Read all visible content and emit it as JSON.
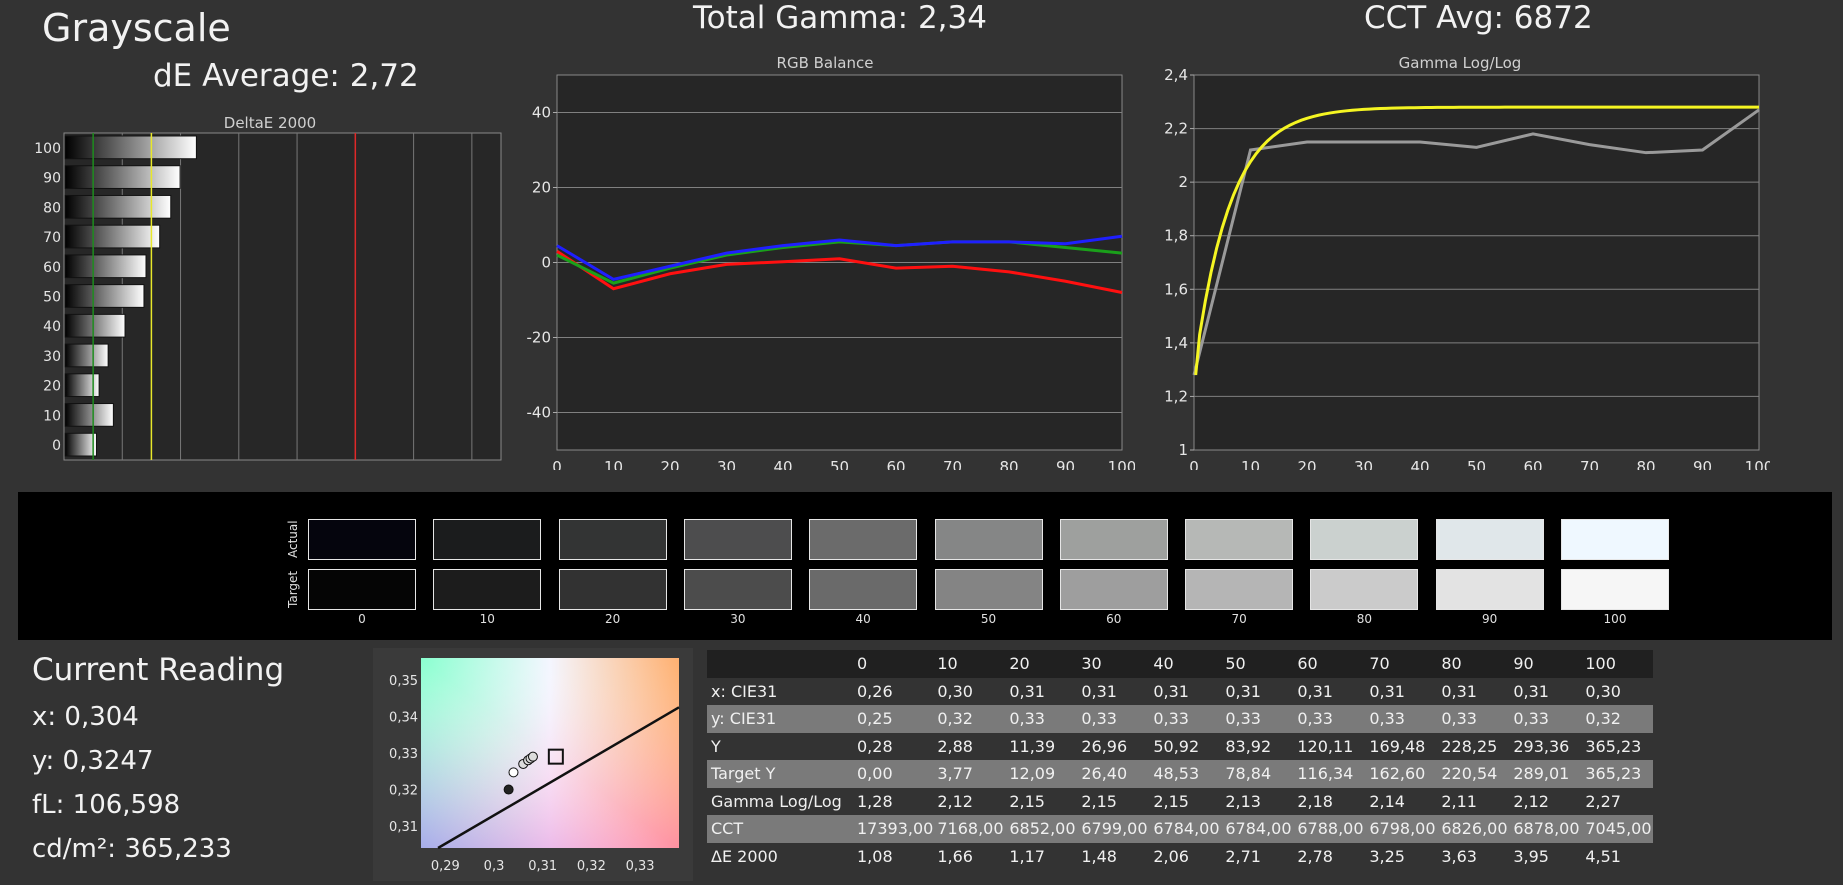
{
  "header": {
    "title": "Grayscale",
    "de_average": "dE Average: 2,72",
    "total_gamma": "Total Gamma: 2,34",
    "cct_avg": "CCT Avg: 6872"
  },
  "chart_data": [
    {
      "type": "bar",
      "title": "DeltaE 2000",
      "orientation": "horizontal",
      "categories": [
        "100",
        "90",
        "80",
        "70",
        "60",
        "50",
        "40",
        "30",
        "20",
        "10",
        "0"
      ],
      "values": [
        4.51,
        3.95,
        3.63,
        3.25,
        2.78,
        2.71,
        2.06,
        1.48,
        1.17,
        1.66,
        1.08
      ],
      "xlim": [
        0,
        15
      ],
      "xticks": [
        "0",
        "2",
        "4",
        "6",
        "8",
        "10",
        "12",
        "14"
      ],
      "reference_lines": [
        {
          "x": 1,
          "color": "#1e8c1e"
        },
        {
          "x": 3,
          "color": "#e8e82a"
        },
        {
          "x": 10,
          "color": "#e02828"
        }
      ]
    },
    {
      "type": "line",
      "title": "RGB Balance",
      "x": [
        0,
        10,
        20,
        30,
        40,
        50,
        60,
        70,
        80,
        90,
        100
      ],
      "xticks": [
        "0",
        "10",
        "20",
        "30",
        "40",
        "50",
        "60",
        "70",
        "80",
        "90",
        "100"
      ],
      "yticks": [
        "40",
        "20",
        "0",
        "-20",
        "-40"
      ],
      "ylim": [
        -50,
        50
      ],
      "series": [
        {
          "color": "#ff1010",
          "values": [
            3,
            -7,
            -3,
            -0.5,
            0.2,
            1,
            -1.5,
            -1,
            -2.5,
            -5,
            -8
          ]
        },
        {
          "color": "#1aa01a",
          "values": [
            2,
            -5.5,
            -1.5,
            2,
            4,
            5.5,
            4.5,
            5.5,
            5.5,
            4,
            2.5
          ]
        },
        {
          "color": "#1f1fff",
          "values": [
            4.5,
            -4.5,
            -1,
            2.5,
            4.5,
            6,
            4.5,
            5.5,
            5.5,
            5,
            7
          ]
        }
      ]
    },
    {
      "type": "line",
      "title": "Gamma Log/Log",
      "x": [
        0,
        10,
        20,
        30,
        40,
        50,
        60,
        70,
        80,
        90,
        100
      ],
      "xticks": [
        "0",
        "10",
        "20",
        "30",
        "40",
        "50",
        "60",
        "70",
        "80",
        "90",
        "100"
      ],
      "yticks": [
        "2,4",
        "2,2",
        "2",
        "1,8",
        "1,6",
        "1,4",
        "1,2",
        "1"
      ],
      "ylim": [
        1,
        2.4
      ],
      "series": [
        {
          "color": "#9a9a9a",
          "values": [
            1.28,
            2.12,
            2.15,
            2.15,
            2.15,
            2.13,
            2.18,
            2.14,
            2.11,
            2.12,
            2.27
          ]
        },
        {
          "color": "#f5f522",
          "target_gamma": 2.28
        }
      ]
    },
    {
      "type": "scatter",
      "xticks": [
        "0,29",
        "0,3",
        "0,31",
        "0,32",
        "0,33"
      ],
      "yticks": [
        "0,35",
        "0,34",
        "0,33",
        "0,32",
        "0,31"
      ],
      "xlim": [
        0.285,
        0.338
      ],
      "ylim": [
        0.304,
        0.356
      ],
      "points": [
        [
          0.303,
          0.32
        ],
        [
          0.304,
          0.3247
        ],
        [
          0.306,
          0.327
        ],
        [
          0.307,
          0.328
        ],
        [
          0.3075,
          0.3285
        ],
        [
          0.308,
          0.329
        ]
      ],
      "target": [
        0.3127,
        0.329
      ]
    }
  ],
  "swatches": {
    "labels": [
      "0",
      "10",
      "20",
      "30",
      "40",
      "50",
      "60",
      "70",
      "80",
      "90",
      "100"
    ],
    "actual_label": "Actual",
    "target_label": "Target",
    "actual_colors": [
      "#05050d",
      "#1b1c1d",
      "#333434",
      "#4d4d4e",
      "#6b6b6b",
      "#858686",
      "#9ea09e",
      "#b6b8b6",
      "#cbd1cf",
      "#e0e7ea",
      "#eff8ff"
    ],
    "target_colors": [
      "#050505",
      "#1c1c1c",
      "#323232",
      "#4c4c4c",
      "#6a6a6a",
      "#848484",
      "#9e9e9e",
      "#b5b5b5",
      "#cbcbcb",
      "#e3e3e3",
      "#f6f6f6"
    ]
  },
  "current_reading": {
    "title": "Current Reading",
    "x": "x: 0,304",
    "y": "y: 0,3247",
    "fl": "fL: 106,598",
    "cdm2": "cd/m²: 365,233"
  },
  "table": {
    "columns": [
      "0",
      "10",
      "20",
      "30",
      "40",
      "50",
      "60",
      "70",
      "80",
      "90",
      "100"
    ],
    "rows": [
      {
        "label": "x: CIE31",
        "values": [
          "0,26",
          "0,30",
          "0,31",
          "0,31",
          "0,31",
          "0,31",
          "0,31",
          "0,31",
          "0,31",
          "0,31",
          "0,30"
        ]
      },
      {
        "label": "y: CIE31",
        "values": [
          "0,25",
          "0,32",
          "0,33",
          "0,33",
          "0,33",
          "0,33",
          "0,33",
          "0,33",
          "0,33",
          "0,33",
          "0,32"
        ]
      },
      {
        "label": "Y",
        "values": [
          "0,28",
          "2,88",
          "11,39",
          "26,96",
          "50,92",
          "83,92",
          "120,11",
          "169,48",
          "228,25",
          "293,36",
          "365,23"
        ]
      },
      {
        "label": "Target Y",
        "values": [
          "0,00",
          "3,77",
          "12,09",
          "26,40",
          "48,53",
          "78,84",
          "116,34",
          "162,60",
          "220,54",
          "289,01",
          "365,23"
        ]
      },
      {
        "label": "Gamma Log/Log",
        "values": [
          "1,28",
          "2,12",
          "2,15",
          "2,15",
          "2,15",
          "2,13",
          "2,18",
          "2,14",
          "2,11",
          "2,12",
          "2,27"
        ]
      },
      {
        "label": "CCT",
        "values": [
          "17393,00",
          "7168,00",
          "6852,00",
          "6799,00",
          "6784,00",
          "6784,00",
          "6788,00",
          "6798,00",
          "6826,00",
          "6878,00",
          "7045,00"
        ]
      },
      {
        "label": "ΔE 2000",
        "values": [
          "1,08",
          "1,66",
          "1,17",
          "1,48",
          "2,06",
          "2,71",
          "2,78",
          "3,25",
          "3,63",
          "3,95",
          "4,51"
        ]
      }
    ]
  }
}
